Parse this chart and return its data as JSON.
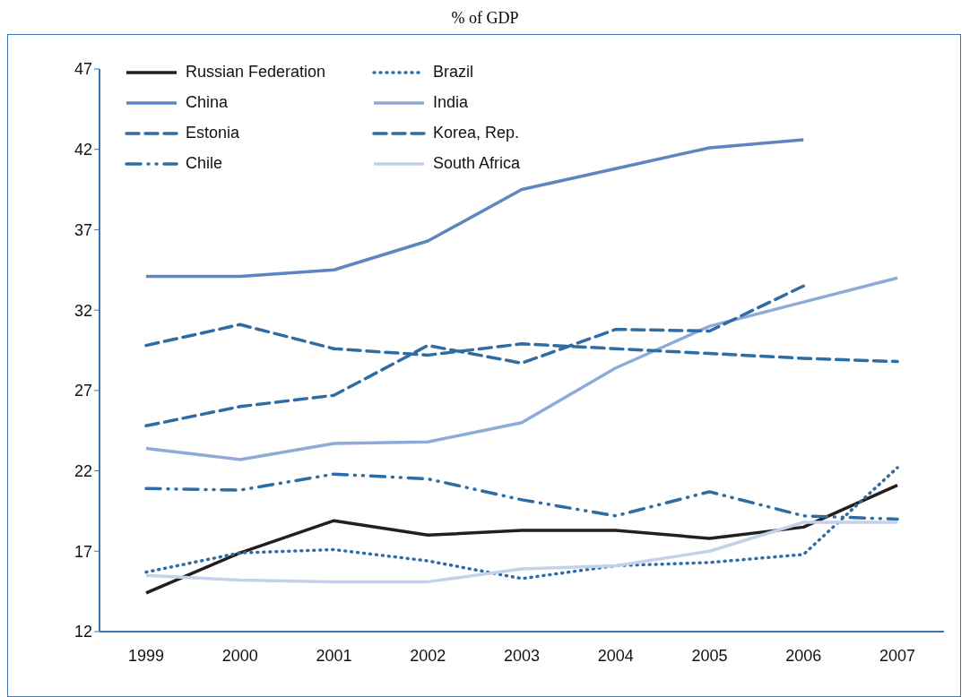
{
  "chart_data": {
    "type": "line",
    "title": "% of GDP",
    "categories": [
      "1999",
      "2000",
      "2001",
      "2002",
      "2003",
      "2004",
      "2005",
      "2006",
      "2007"
    ],
    "series": [
      {
        "name": "Russian Federation",
        "color": "#231f20",
        "line_style": "solid",
        "values": [
          14.4,
          16.9,
          18.9,
          18.0,
          18.3,
          18.3,
          17.8,
          18.5,
          21.1
        ]
      },
      {
        "name": "Brazil",
        "color": "#2e6ca4",
        "line_style": "dotted",
        "values": [
          15.7,
          16.9,
          17.1,
          16.4,
          15.3,
          16.1,
          16.3,
          16.8,
          22.2
        ]
      },
      {
        "name": "China",
        "color": "#5b86c0",
        "line_style": "solid",
        "values": [
          34.1,
          34.1,
          34.5,
          36.3,
          39.5,
          40.8,
          42.1,
          42.6,
          null
        ]
      },
      {
        "name": "India",
        "color": "#8eaad8",
        "line_style": "solid",
        "values": [
          23.4,
          22.7,
          23.7,
          23.8,
          25.0,
          28.4,
          31.0,
          32.5,
          34.0
        ]
      },
      {
        "name": "Estonia",
        "color": "#2e6ca4",
        "line_style": "dashed",
        "values": [
          24.8,
          26.0,
          26.7,
          29.8,
          28.7,
          30.8,
          30.7,
          33.5,
          null
        ]
      },
      {
        "name": "Korea, Rep.",
        "color": "#2e6ca4",
        "line_style": "dashed",
        "values": [
          29.8,
          31.1,
          29.6,
          29.2,
          29.9,
          29.6,
          29.3,
          29.0,
          28.8
        ]
      },
      {
        "name": "Chile",
        "color": "#2e6ca4",
        "line_style": "dashdot",
        "values": [
          20.9,
          20.8,
          21.8,
          21.5,
          20.2,
          19.2,
          20.7,
          19.2,
          19.0
        ]
      },
      {
        "name": "South Africa",
        "color": "#c5d0ea",
        "line_style": "solid",
        "values": [
          15.5,
          15.2,
          15.1,
          15.1,
          15.9,
          16.1,
          17.0,
          18.8,
          18.8
        ]
      }
    ],
    "ylim": [
      12,
      47
    ],
    "yticks": [
      12,
      17,
      22,
      27,
      32,
      37,
      42,
      47
    ],
    "grid": false,
    "legend": "top left",
    "marker": "none"
  }
}
